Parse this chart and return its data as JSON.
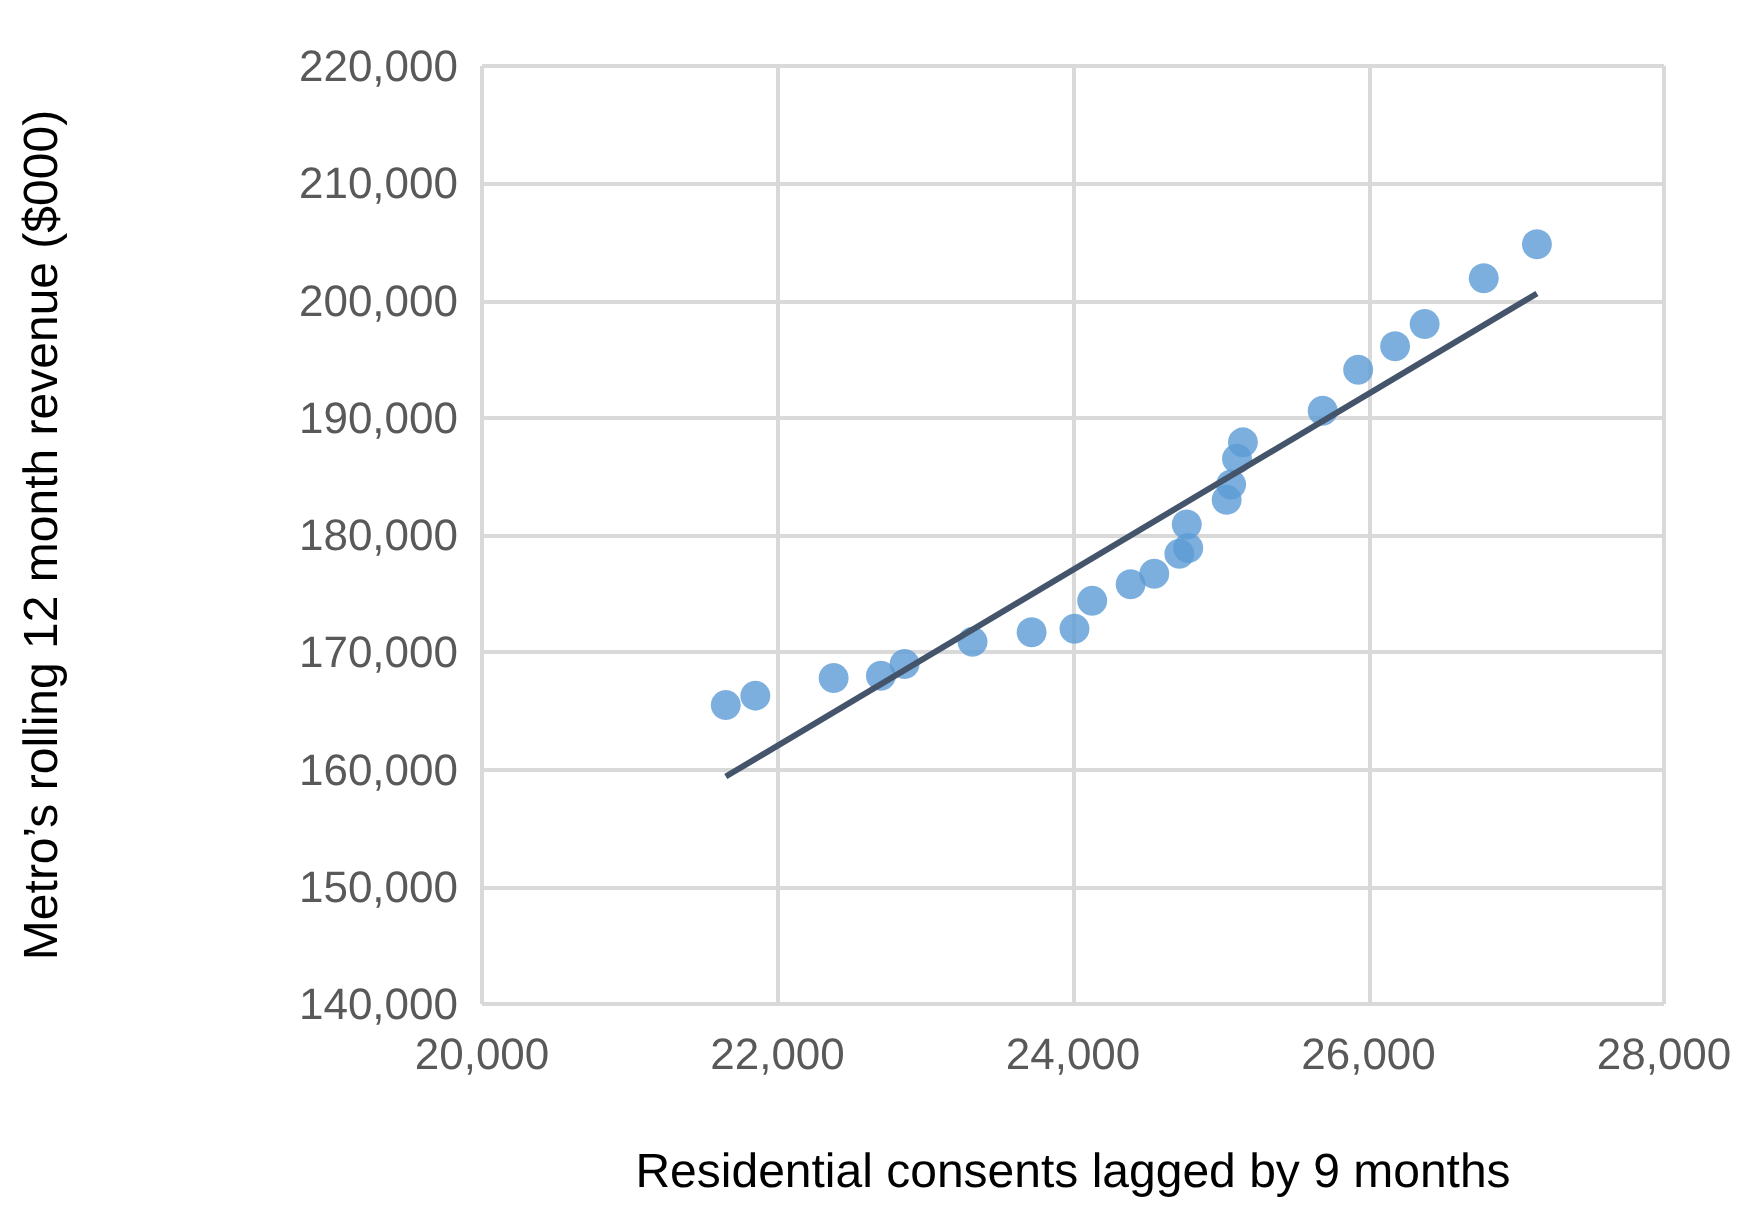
{
  "chart_data": {
    "type": "scatter",
    "xlabel": "Residential consents lagged by 9 months",
    "ylabel": "Metro’s rolling 12 month revenue ($000)",
    "xlim": [
      20000,
      28000
    ],
    "xticks": [
      {
        "value": 20000,
        "label": "20,000"
      },
      {
        "value": 22000,
        "label": "22,000"
      },
      {
        "value": 24000,
        "label": "24,000"
      },
      {
        "value": 26000,
        "label": "26,000"
      },
      {
        "value": 28000,
        "label": "28,000"
      }
    ],
    "ylim": [
      140000,
      220000
    ],
    "yticks": [
      {
        "value": 140000,
        "label": "140,000"
      },
      {
        "value": 150000,
        "label": "150,000"
      },
      {
        "value": 160000,
        "label": "160,000"
      },
      {
        "value": 170000,
        "label": "170,000"
      },
      {
        "value": 180000,
        "label": "180,000"
      },
      {
        "value": 190000,
        "label": "190,000"
      },
      {
        "value": 200000,
        "label": "200,000"
      },
      {
        "value": 210000,
        "label": "210,000"
      },
      {
        "value": 220000,
        "label": "220,000"
      }
    ],
    "grid": true,
    "marker": "circle",
    "series": [
      {
        "color": "#5b9bd5",
        "x": [
          21650,
          21850,
          22380,
          22700,
          22860,
          23320,
          23720,
          24010,
          24130,
          24390,
          24550,
          24720,
          24780,
          24770,
          25040,
          25070,
          25110,
          25150,
          25690,
          25930,
          26180,
          26380,
          26780,
          27140
        ],
        "values": [
          165500,
          166300,
          167800,
          168000,
          169000,
          170900,
          171700,
          172000,
          174400,
          175800,
          176700,
          178400,
          178900,
          180900,
          183000,
          184300,
          186500,
          187900,
          190600,
          194100,
          196100,
          198000,
          201900,
          204800
        ]
      },
      {
        "type": "line",
        "color": "#44546a",
        "marker": "none",
        "x": [
          21650,
          27140
        ],
        "values": [
          159400,
          200600
        ]
      }
    ]
  }
}
